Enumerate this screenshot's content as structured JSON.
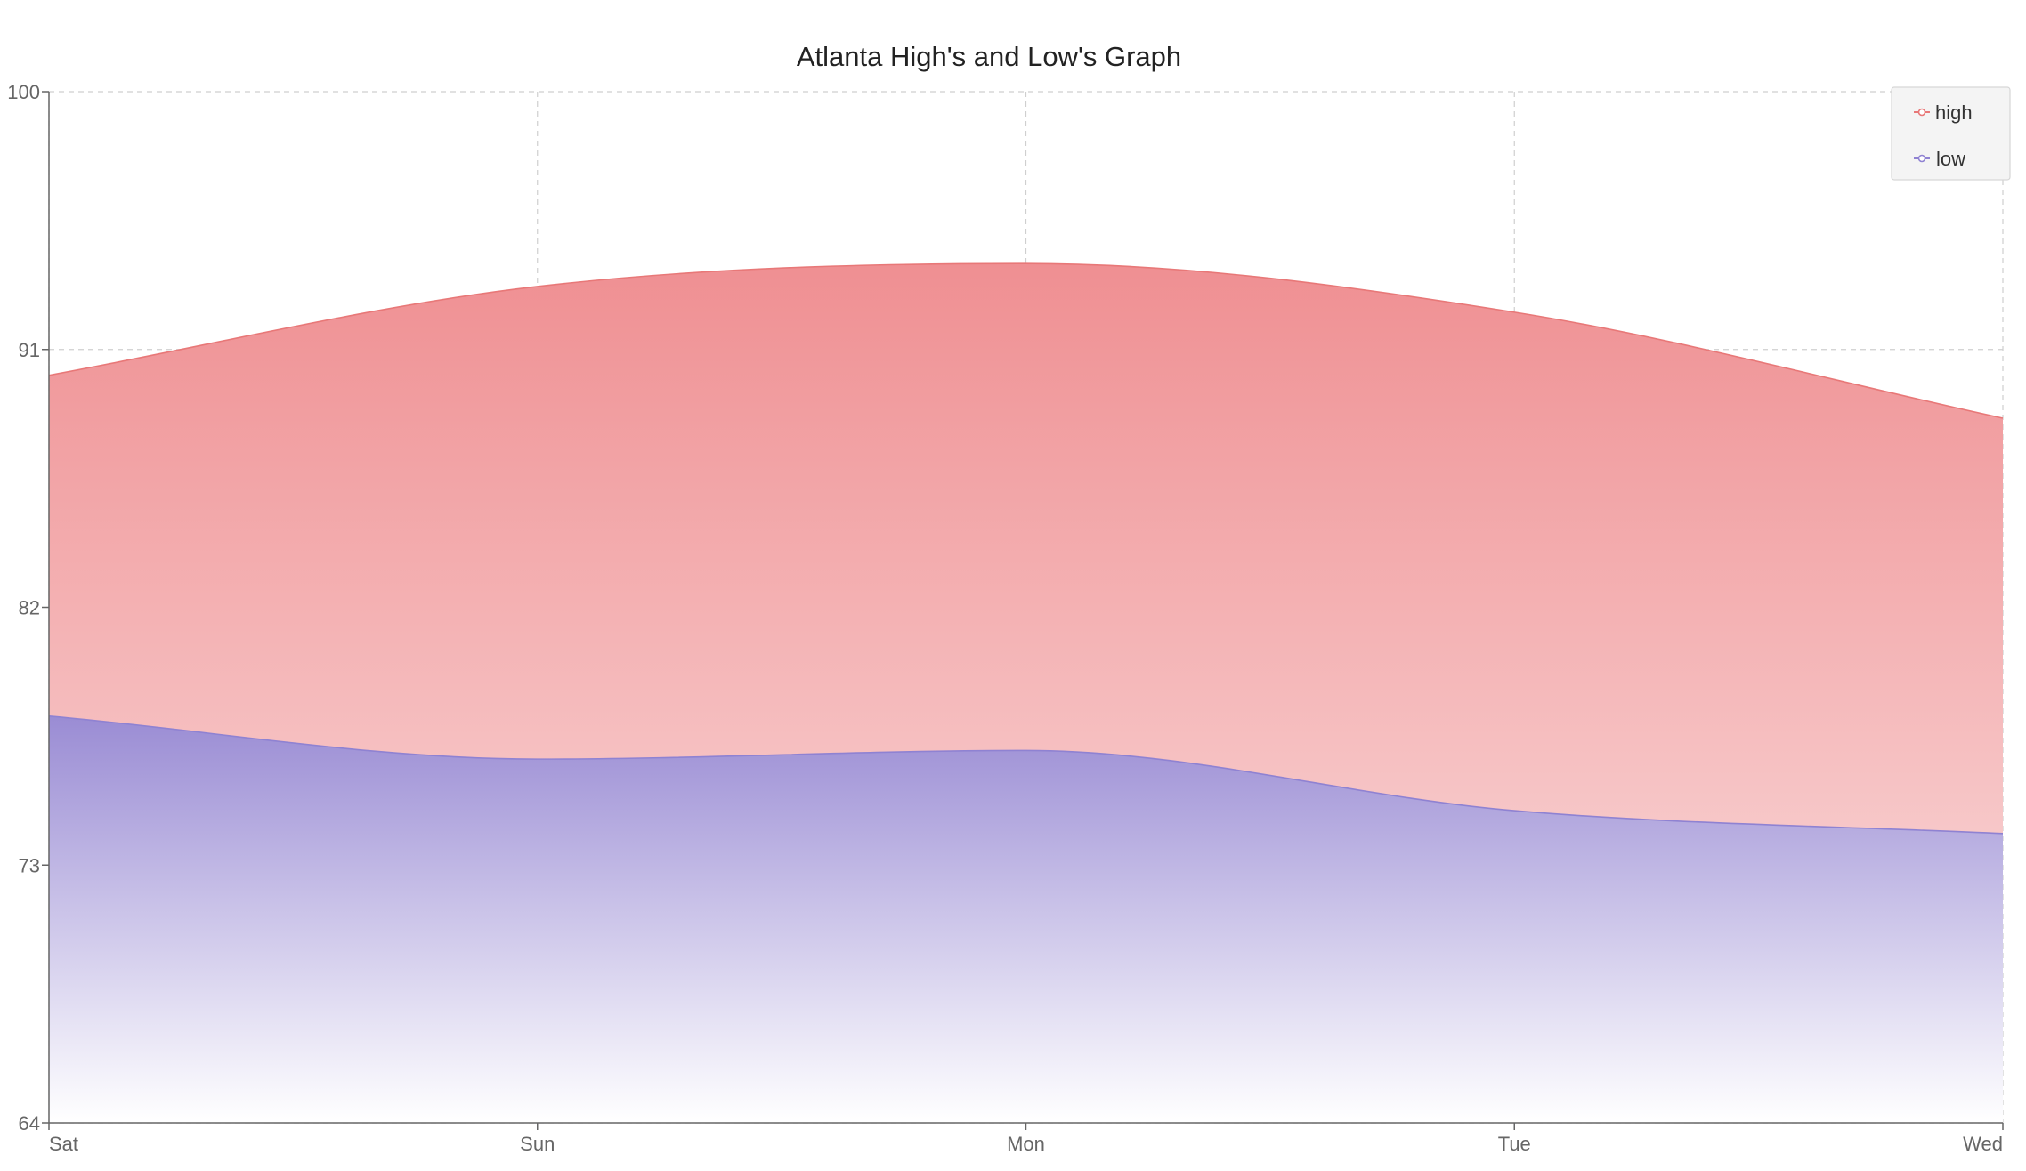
{
  "chart_data": {
    "type": "area",
    "title": "Atlanta High's and Low's Graph",
    "categories": [
      "Sat",
      "Sun",
      "Mon",
      "Tue",
      "Wed"
    ],
    "y_ticks": [
      "64",
      "73",
      "82",
      "91",
      "100"
    ],
    "ylim": [
      64,
      100
    ],
    "series": [
      {
        "name": "high",
        "values": [
          90.1,
          93.2,
          94.0,
          92.3,
          88.6
        ],
        "color": "#e87878",
        "fill_top": "#ef8f92",
        "fill_bottom": "#fbe4e4"
      },
      {
        "name": "low",
        "values": [
          78.2,
          76.7,
          77.0,
          74.9,
          74.1
        ],
        "color": "#8f82d2",
        "fill_top": "#9a8cd4",
        "fill_bottom": "#ffffff"
      }
    ],
    "grid": true,
    "legend": "top-right"
  }
}
